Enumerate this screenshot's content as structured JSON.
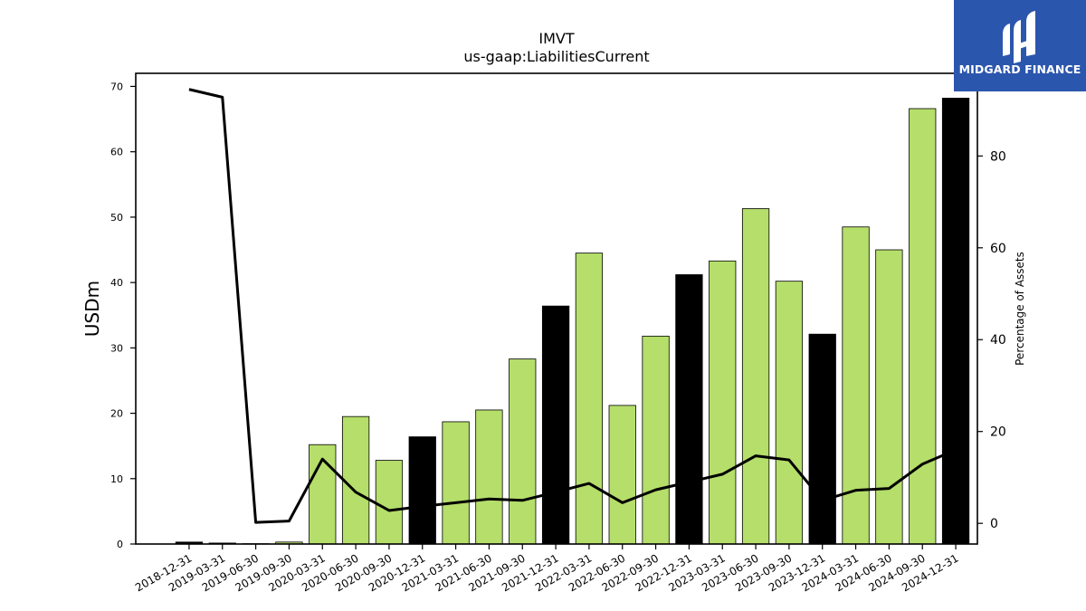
{
  "brand": {
    "name": "MIDGARD FINANCE",
    "logo_color": "#2b56ad"
  },
  "chart_data": {
    "type": "bar",
    "title": "IMVT",
    "subtitle": "us-gaap:LiabilitiesCurrent",
    "ylabel": "USDm",
    "y2label": "Percentage of Assets",
    "ylim": [
      0,
      72
    ],
    "y2lim": [
      -4.5,
      98
    ],
    "yticks": [
      0,
      10,
      20,
      30,
      40,
      50,
      60,
      70
    ],
    "y2ticks": [
      0,
      20,
      40,
      60,
      80
    ],
    "categories": [
      "2018-12-31",
      "2019-03-31",
      "2019-06-30",
      "2019-09-30",
      "2020-03-31",
      "2020-06-30",
      "2020-09-30",
      "2020-12-31",
      "2021-03-31",
      "2021-06-30",
      "2021-09-30",
      "2021-12-31",
      "2022-03-31",
      "2022-06-30",
      "2022-09-30",
      "2022-12-31",
      "2023-03-31",
      "2023-06-30",
      "2023-09-30",
      "2023-12-31",
      "2024-03-31",
      "2024-06-30",
      "2024-09-30",
      "2024-12-31"
    ],
    "series": [
      {
        "type": "bar",
        "values": [
          0.3,
          0.15,
          0.05,
          0.3,
          15.2,
          19.5,
          12.8,
          16.4,
          18.7,
          20.5,
          28.3,
          36.4,
          44.5,
          21.2,
          31.8,
          41.2,
          43.3,
          51.3,
          40.2,
          32.1,
          48.5,
          45.0,
          66.6,
          68.2
        ],
        "colors": [
          "#000000",
          "#000000",
          "#000000",
          "#b5de6b",
          "#b5de6b",
          "#b5de6b",
          "#b5de6b",
          "#000000",
          "#b5de6b",
          "#b5de6b",
          "#b5de6b",
          "#000000",
          "#b5de6b",
          "#b5de6b",
          "#b5de6b",
          "#000000",
          "#b5de6b",
          "#b5de6b",
          "#b5de6b",
          "#000000",
          "#b5de6b",
          "#b5de6b",
          "#b5de6b",
          "#000000"
        ]
      },
      {
        "type": "line",
        "axis": "right",
        "color": "#000000",
        "values": [
          94.5,
          92.8,
          0.2,
          0.5,
          14.0,
          6.8,
          2.8,
          3.7,
          4.5,
          5.3,
          5.0,
          6.8,
          8.7,
          4.5,
          7.3,
          9.0,
          10.7,
          14.7,
          13.8,
          5.0,
          7.2,
          7.6,
          12.9,
          16.0
        ]
      }
    ],
    "grid": false
  }
}
